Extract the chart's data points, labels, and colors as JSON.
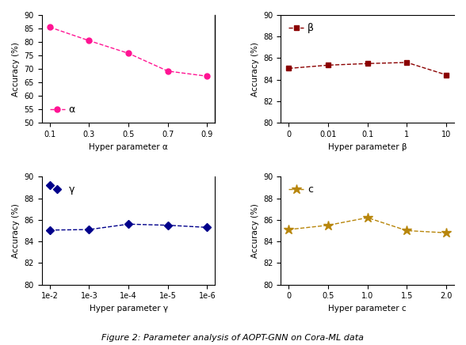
{
  "alpha": {
    "x": [
      0.1,
      0.3,
      0.5,
      0.7,
      0.9
    ],
    "y": [
      85.5,
      80.5,
      75.8,
      69.2,
      67.3
    ],
    "color": "#FF1493",
    "marker": "o",
    "label": "α",
    "xlabel": "Hyper parameter α",
    "ylabel": "Accuracy (%)",
    "ylim": [
      50,
      90
    ],
    "yticks": [
      50,
      55,
      60,
      65,
      70,
      75,
      80,
      85,
      90
    ],
    "xticks": [
      0.1,
      0.3,
      0.5,
      0.7,
      0.9
    ],
    "xticklabels": [
      "0.1",
      "0.3",
      "0.5",
      "0.7",
      "0.9"
    ],
    "legend_loc": "lower left"
  },
  "beta": {
    "x": [
      0,
      1,
      2,
      3,
      4
    ],
    "y": [
      85.05,
      85.35,
      85.5,
      85.6,
      84.45
    ],
    "color": "#8B0000",
    "marker": "s",
    "label": "β",
    "xlabel": "Hyper parameter β",
    "ylabel": "Accuracy (%)",
    "ylim": [
      80,
      90
    ],
    "yticks": [
      80,
      82,
      84,
      86,
      88,
      90
    ],
    "xticks": [
      0,
      1,
      2,
      3,
      4
    ],
    "xticklabels": [
      "0",
      "0.01",
      "0.1",
      "1",
      "10"
    ],
    "legend_loc": "upper left"
  },
  "gamma": {
    "x": [
      0,
      1,
      2,
      3,
      4
    ],
    "y": [
      85.05,
      85.1,
      85.6,
      85.5,
      85.3
    ],
    "color": "#00008B",
    "marker": "D",
    "label": "γ",
    "xlabel": "Hyper parameter γ",
    "ylabel": "Accuracy (%)",
    "ylim": [
      80,
      90
    ],
    "yticks": [
      80,
      82,
      84,
      86,
      88,
      90
    ],
    "xticks": [
      0,
      1,
      2,
      3,
      4
    ],
    "xticklabels": [
      "1e-2",
      "1e-3",
      "1e-4",
      "1e-5",
      "1e-6"
    ],
    "legend_loc": "upper left",
    "outlier_y": 89.2
  },
  "c": {
    "x": [
      0,
      0.5,
      1.0,
      1.5,
      2.0
    ],
    "y": [
      85.1,
      85.5,
      86.2,
      85.0,
      84.8
    ],
    "color": "#B8860B",
    "marker": "*",
    "label": "c",
    "xlabel": "Hyper parameter c",
    "ylabel": "Accuracy (%)",
    "ylim": [
      80,
      90
    ],
    "yticks": [
      80,
      82,
      84,
      86,
      88,
      90
    ],
    "xticks": [
      0,
      0.5,
      1.0,
      1.5,
      2.0
    ],
    "xticklabels": [
      "0",
      "0.5",
      "1.0",
      "1.5",
      "2.0"
    ],
    "legend_loc": "upper left"
  },
  "caption": "Figure 2: Parameter analysis of AOPT-GNN on Cora-ML data"
}
